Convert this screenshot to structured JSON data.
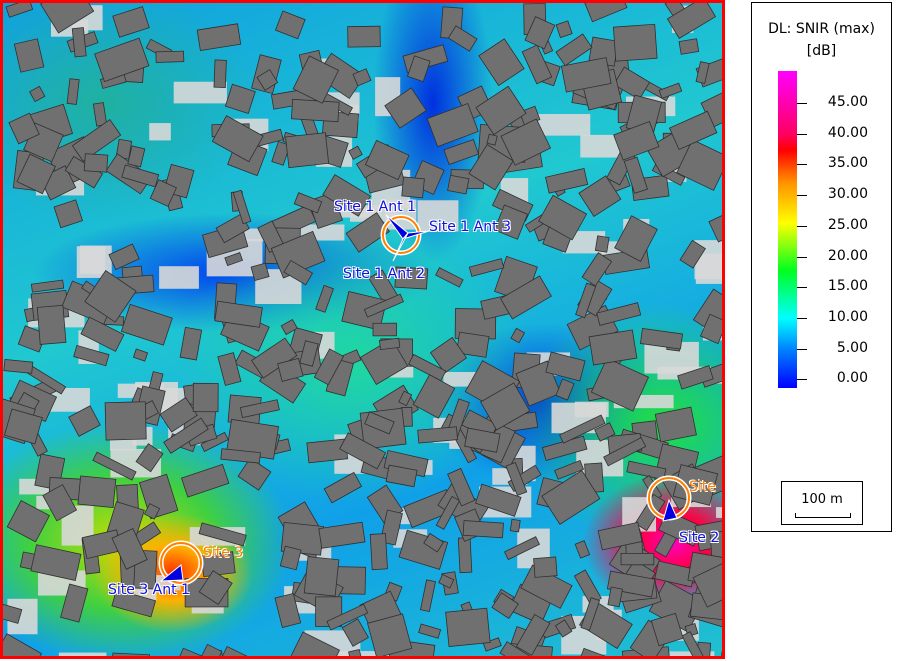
{
  "legend": {
    "title": "DL: SNIR (max)",
    "unit": "[dB]",
    "ticks": [
      "45.00",
      "40.00",
      "35.00",
      "30.00",
      "25.00",
      "20.00",
      "15.00",
      "10.00",
      "5.00",
      "0.00"
    ],
    "colors": {
      "max": "#ff00ff",
      "high": "#ff0000",
      "mid_high": "#ffff00",
      "mid": "#00ff20",
      "low_mid": "#00ffff",
      "min": "#0000ff"
    }
  },
  "scale_bar": {
    "label": "100 m"
  },
  "sites": [
    {
      "name": "Site 1",
      "labels": [
        "Site 1 Ant 1",
        "Site 1 Ant 3",
        "Site 1 Ant 2"
      ]
    },
    {
      "name": "Site 2",
      "labels": [
        "Site",
        "Site 2"
      ]
    },
    {
      "name": "Site 3",
      "labels": [
        "Site 3",
        "Site 3 Ant 1"
      ]
    }
  ],
  "colors": {
    "map_border": "#ff0000",
    "building": "#707070",
    "antenna": "#0000e0",
    "site_ring": "#ff8000"
  }
}
